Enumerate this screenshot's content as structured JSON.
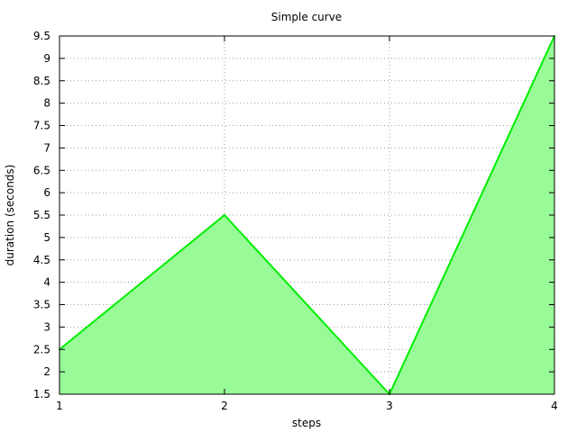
{
  "chart_data": {
    "type": "area",
    "title": "Simple curve",
    "xlabel": "steps",
    "ylabel": "duration (seconds)",
    "x": [
      1,
      2,
      3,
      4
    ],
    "series": [
      {
        "values": [
          2.5,
          5.5,
          1.5,
          9.5
        ],
        "line_color": "#00ee00",
        "fill_color": "#98fb98"
      }
    ],
    "xlim": [
      1,
      4
    ],
    "ylim": [
      1.5,
      9.5
    ],
    "xticks": [
      1,
      2,
      3,
      4
    ],
    "xtick_labels": [
      "1",
      "2",
      "3",
      "4"
    ],
    "yticks": [
      1.5,
      2,
      2.5,
      3,
      3.5,
      4,
      4.5,
      5,
      5.5,
      6,
      6.5,
      7,
      7.5,
      8,
      8.5,
      9,
      9.5
    ],
    "ytick_labels": [
      "1.5",
      "2",
      "2.5",
      "3",
      "3.5",
      "4",
      "4.5",
      "5",
      "5.5",
      "6",
      "6.5",
      "7",
      "7.5",
      "8",
      "8.5",
      "9",
      "9.5"
    ],
    "grid": true,
    "legend": "none"
  }
}
